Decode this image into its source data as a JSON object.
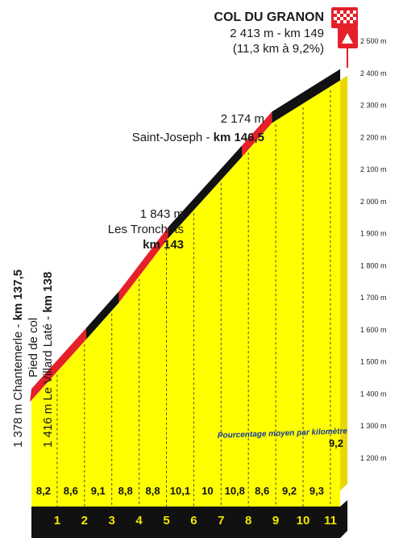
{
  "chart_data": {
    "type": "area",
    "title": "COL DU GRANON",
    "summit_line1": "2 413 m - km 149",
    "summit_line2": "(11,3 km à 9,2%)",
    "ylim": [
      1200,
      2500
    ],
    "y_ticks": [
      "1 200 m",
      "1 300 m",
      "1 400 m",
      "1 500 m",
      "1 600 m",
      "1 700 m",
      "1 800 m",
      "1 900 m",
      "2 000 m",
      "2 100 m",
      "2 200 m",
      "2 300 m",
      "2 400 m",
      "2 500 m"
    ],
    "y_tick_values": [
      1200,
      1300,
      1400,
      1500,
      1600,
      1700,
      1800,
      1900,
      2000,
      2100,
      2200,
      2300,
      2400,
      2500
    ],
    "km_labels": [
      "1",
      "2",
      "3",
      "4",
      "5",
      "6",
      "7",
      "8",
      "9",
      "10",
      "11"
    ],
    "segment_grades": [
      "8,2",
      "8,6",
      "9,1",
      "8,8",
      "8,8",
      "10,1",
      "10",
      "10,8",
      "8,6",
      "9,2",
      "9,3",
      "9,2"
    ],
    "profile": {
      "x_km": [
        0,
        2.0,
        3.2,
        5.0,
        7.7,
        8.8,
        11.3
      ],
      "altitude_m": [
        1416,
        1605,
        1720,
        1920,
        2174,
        2280,
        2413
      ],
      "colors": [
        "red",
        "black",
        "red",
        "black",
        "red",
        "black"
      ]
    },
    "subtitle": "Pourcentage moyen par kilomètre",
    "annotations": {
      "start_line1_a": "1 378 m Chantemerle - ",
      "start_line1_b": "km 137,5",
      "start_line2": "Pied de col",
      "start_line3_a": "1 416 m Le Villard Laté - ",
      "start_line3_b": "km 138",
      "tronchets_alt": "1 843 m",
      "tronchets_name": "Les Tronchets",
      "tronchets_km": "km 143",
      "sj_alt": "2 174 m",
      "sj_name": "Saint-Joseph - ",
      "sj_km": "km 146,5"
    },
    "colors": {
      "fill": "#ffff00",
      "side": "#e8d800",
      "red": "#e4202a",
      "black": "#111111",
      "base": "#111111",
      "km_text": "#f2e600",
      "flag_red": "#e4202a"
    }
  }
}
